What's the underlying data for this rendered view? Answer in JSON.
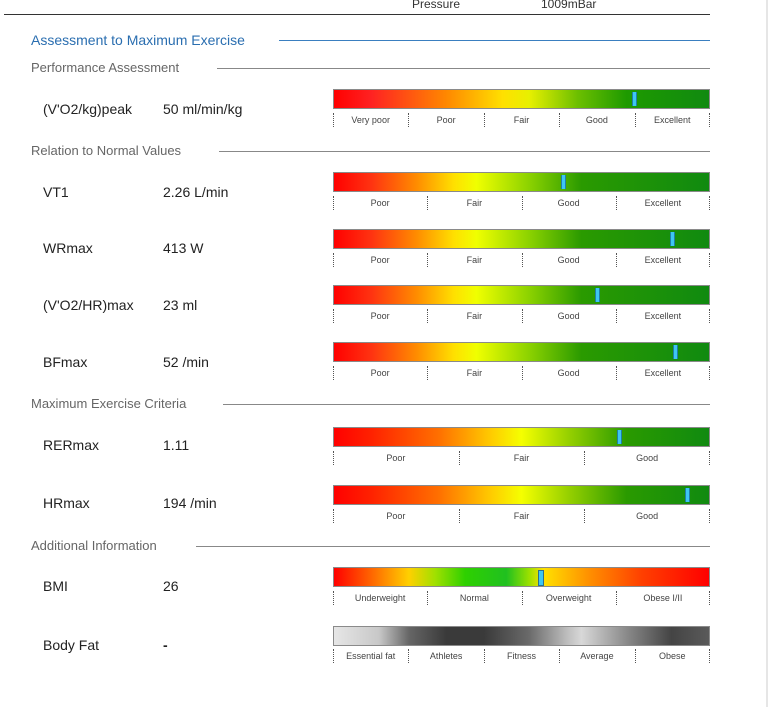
{
  "top": {
    "left_text": "Pressure",
    "right_text": "1009mBar"
  },
  "sections": {
    "assessment": "Assessment to Maximum Exercise",
    "performance": "Performance Assessment",
    "relation": "Relation to Normal Values",
    "criteria": "Maximum Exercise Criteria",
    "additional": "Additional Information"
  },
  "rows": {
    "vo2kg": {
      "label": "(V'O2/kg)peak",
      "value": "50 ml/min/kg",
      "scale": [
        "Very poor",
        "Poor",
        "Fair",
        "Good",
        "Excellent"
      ],
      "marker_fraction": 0.8
    },
    "vt1": {
      "label": "VT1",
      "value": "2.26 L/min",
      "scale": [
        "Poor",
        "Fair",
        "Good",
        "Excellent"
      ],
      "marker_fraction": 0.61
    },
    "wrmax": {
      "label": "WRmax",
      "value": "413 W",
      "scale": [
        "Poor",
        "Fair",
        "Good",
        "Excellent"
      ],
      "marker_fraction": 0.9
    },
    "vo2hr": {
      "label": "(V'O2/HR)max",
      "value": "23 ml",
      "scale": [
        "Poor",
        "Fair",
        "Good",
        "Excellent"
      ],
      "marker_fraction": 0.7
    },
    "bfmax": {
      "label": "BFmax",
      "value": "52 /min",
      "scale": [
        "Poor",
        "Fair",
        "Good",
        "Excellent"
      ],
      "marker_fraction": 0.91
    },
    "rermax": {
      "label": "RERmax",
      "value": "1.11",
      "scale": [
        "Poor",
        "Fair",
        "Good"
      ],
      "marker_fraction": 0.76
    },
    "hrmax": {
      "label": "HRmax",
      "value": "194 /min",
      "scale": [
        "Poor",
        "Fair",
        "Good"
      ],
      "marker_fraction": 0.94
    },
    "bmi": {
      "label": "BMI",
      "value": "26",
      "scale": [
        "Underweight",
        "Normal",
        "Overweight",
        "Obese I/II"
      ],
      "marker_fraction": 0.55
    },
    "bodyfat": {
      "label": "Body Fat",
      "value": "-",
      "scale": [
        "Essential fat",
        "Athletes",
        "Fitness",
        "Average",
        "Obese"
      ]
    }
  },
  "colors": {
    "accent": "#2a6eb0",
    "marker": "#3ec6f2"
  }
}
